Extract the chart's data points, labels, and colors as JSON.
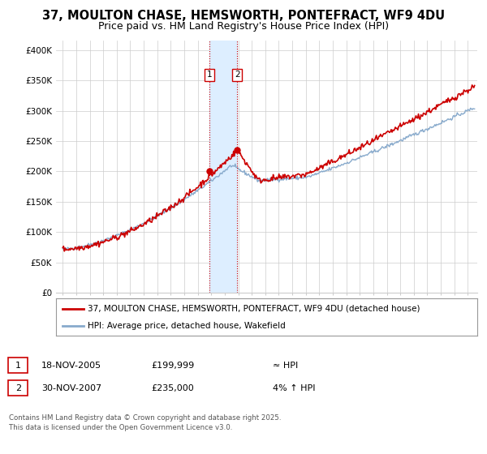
{
  "title": "37, MOULTON CHASE, HEMSWORTH, PONTEFRACT, WF9 4DU",
  "subtitle": "Price paid vs. HM Land Registry's House Price Index (HPI)",
  "title_fontsize": 10.5,
  "subtitle_fontsize": 9,
  "legend_label_red": "37, MOULTON CHASE, HEMSWORTH, PONTEFRACT, WF9 4DU (detached house)",
  "legend_label_blue": "HPI: Average price, detached house, Wakefield",
  "red_color": "#cc0000",
  "blue_color": "#88aacc",
  "shade_color": "#ddeeff",
  "ylabel_ticks": [
    "£0",
    "£50K",
    "£100K",
    "£150K",
    "£200K",
    "£250K",
    "£300K",
    "£350K",
    "£400K"
  ],
  "ytick_vals": [
    0,
    50000,
    100000,
    150000,
    200000,
    250000,
    300000,
    350000,
    400000
  ],
  "ylim": [
    0,
    415000
  ],
  "xlim_start": 1994.5,
  "xlim_end": 2025.7,
  "transaction1_x": 2005.88,
  "transaction1_y": 199999,
  "transaction1_label": "1",
  "transaction2_x": 2007.92,
  "transaction2_y": 235000,
  "transaction2_label": "2",
  "shade_x1": 2005.88,
  "shade_x2": 2007.92,
  "vline1_x": 2005.88,
  "vline2_x": 2007.92,
  "table_row1": [
    "1",
    "18-NOV-2005",
    "£199,999",
    "≈ HPI"
  ],
  "table_row2": [
    "2",
    "30-NOV-2007",
    "£235,000",
    "4% ↑ HPI"
  ],
  "footer": "Contains HM Land Registry data © Crown copyright and database right 2025.\nThis data is licensed under the Open Government Licence v3.0.",
  "background_color": "#ffffff",
  "grid_color": "#cccccc"
}
